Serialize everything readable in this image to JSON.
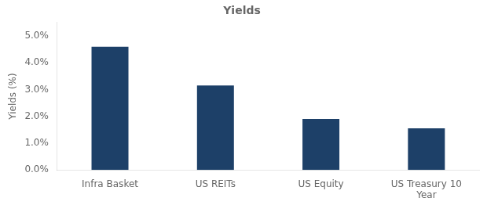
{
  "chart_data": {
    "type": "bar",
    "title": "Yields",
    "ylabel": "Yields (%)",
    "categories": [
      "Infra Basket",
      "US REITs",
      "US Equity",
      "US Treasury 10\nYear"
    ],
    "values": [
      0.046,
      0.0315,
      0.019,
      0.0155
    ],
    "color": "#1d4068",
    "ylim": [
      0,
      0.055
    ],
    "yticks": [
      {
        "value": 0.0,
        "label": "0.0%"
      },
      {
        "value": 0.01,
        "label": "1.0%"
      },
      {
        "value": 0.02,
        "label": "2.0%"
      },
      {
        "value": 0.03,
        "label": "3.0%"
      },
      {
        "value": 0.04,
        "label": "4.0%"
      },
      {
        "value": 0.05,
        "label": "5.0%"
      }
    ],
    "grid": false
  }
}
